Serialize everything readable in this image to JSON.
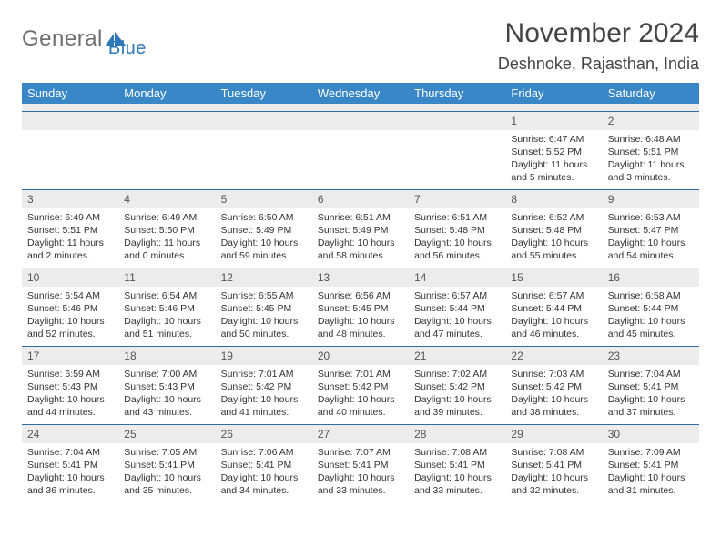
{
  "logo": {
    "text1": "General",
    "text2": "Blue"
  },
  "title": "November 2024",
  "location": "Deshnoke, Rajasthan, India",
  "colors": {
    "header_bg": "#3a87c8",
    "header_text": "#ffffff",
    "daynum_bg": "#ececec",
    "border": "#2e6ca3",
    "logo_gray": "#6e6e6e",
    "logo_blue": "#2e77b8"
  },
  "weekdays": [
    "Sunday",
    "Monday",
    "Tuesday",
    "Wednesday",
    "Thursday",
    "Friday",
    "Saturday"
  ],
  "weeks": [
    [
      null,
      null,
      null,
      null,
      null,
      {
        "n": "1",
        "sr": "Sunrise: 6:47 AM",
        "ss": "Sunset: 5:52 PM",
        "dl": "Daylight: 11 hours and 5 minutes."
      },
      {
        "n": "2",
        "sr": "Sunrise: 6:48 AM",
        "ss": "Sunset: 5:51 PM",
        "dl": "Daylight: 11 hours and 3 minutes."
      }
    ],
    [
      {
        "n": "3",
        "sr": "Sunrise: 6:49 AM",
        "ss": "Sunset: 5:51 PM",
        "dl": "Daylight: 11 hours and 2 minutes."
      },
      {
        "n": "4",
        "sr": "Sunrise: 6:49 AM",
        "ss": "Sunset: 5:50 PM",
        "dl": "Daylight: 11 hours and 0 minutes."
      },
      {
        "n": "5",
        "sr": "Sunrise: 6:50 AM",
        "ss": "Sunset: 5:49 PM",
        "dl": "Daylight: 10 hours and 59 minutes."
      },
      {
        "n": "6",
        "sr": "Sunrise: 6:51 AM",
        "ss": "Sunset: 5:49 PM",
        "dl": "Daylight: 10 hours and 58 minutes."
      },
      {
        "n": "7",
        "sr": "Sunrise: 6:51 AM",
        "ss": "Sunset: 5:48 PM",
        "dl": "Daylight: 10 hours and 56 minutes."
      },
      {
        "n": "8",
        "sr": "Sunrise: 6:52 AM",
        "ss": "Sunset: 5:48 PM",
        "dl": "Daylight: 10 hours and 55 minutes."
      },
      {
        "n": "9",
        "sr": "Sunrise: 6:53 AM",
        "ss": "Sunset: 5:47 PM",
        "dl": "Daylight: 10 hours and 54 minutes."
      }
    ],
    [
      {
        "n": "10",
        "sr": "Sunrise: 6:54 AM",
        "ss": "Sunset: 5:46 PM",
        "dl": "Daylight: 10 hours and 52 minutes."
      },
      {
        "n": "11",
        "sr": "Sunrise: 6:54 AM",
        "ss": "Sunset: 5:46 PM",
        "dl": "Daylight: 10 hours and 51 minutes."
      },
      {
        "n": "12",
        "sr": "Sunrise: 6:55 AM",
        "ss": "Sunset: 5:45 PM",
        "dl": "Daylight: 10 hours and 50 minutes."
      },
      {
        "n": "13",
        "sr": "Sunrise: 6:56 AM",
        "ss": "Sunset: 5:45 PM",
        "dl": "Daylight: 10 hours and 48 minutes."
      },
      {
        "n": "14",
        "sr": "Sunrise: 6:57 AM",
        "ss": "Sunset: 5:44 PM",
        "dl": "Daylight: 10 hours and 47 minutes."
      },
      {
        "n": "15",
        "sr": "Sunrise: 6:57 AM",
        "ss": "Sunset: 5:44 PM",
        "dl": "Daylight: 10 hours and 46 minutes."
      },
      {
        "n": "16",
        "sr": "Sunrise: 6:58 AM",
        "ss": "Sunset: 5:44 PM",
        "dl": "Daylight: 10 hours and 45 minutes."
      }
    ],
    [
      {
        "n": "17",
        "sr": "Sunrise: 6:59 AM",
        "ss": "Sunset: 5:43 PM",
        "dl": "Daylight: 10 hours and 44 minutes."
      },
      {
        "n": "18",
        "sr": "Sunrise: 7:00 AM",
        "ss": "Sunset: 5:43 PM",
        "dl": "Daylight: 10 hours and 43 minutes."
      },
      {
        "n": "19",
        "sr": "Sunrise: 7:01 AM",
        "ss": "Sunset: 5:42 PM",
        "dl": "Daylight: 10 hours and 41 minutes."
      },
      {
        "n": "20",
        "sr": "Sunrise: 7:01 AM",
        "ss": "Sunset: 5:42 PM",
        "dl": "Daylight: 10 hours and 40 minutes."
      },
      {
        "n": "21",
        "sr": "Sunrise: 7:02 AM",
        "ss": "Sunset: 5:42 PM",
        "dl": "Daylight: 10 hours and 39 minutes."
      },
      {
        "n": "22",
        "sr": "Sunrise: 7:03 AM",
        "ss": "Sunset: 5:42 PM",
        "dl": "Daylight: 10 hours and 38 minutes."
      },
      {
        "n": "23",
        "sr": "Sunrise: 7:04 AM",
        "ss": "Sunset: 5:41 PM",
        "dl": "Daylight: 10 hours and 37 minutes."
      }
    ],
    [
      {
        "n": "24",
        "sr": "Sunrise: 7:04 AM",
        "ss": "Sunset: 5:41 PM",
        "dl": "Daylight: 10 hours and 36 minutes."
      },
      {
        "n": "25",
        "sr": "Sunrise: 7:05 AM",
        "ss": "Sunset: 5:41 PM",
        "dl": "Daylight: 10 hours and 35 minutes."
      },
      {
        "n": "26",
        "sr": "Sunrise: 7:06 AM",
        "ss": "Sunset: 5:41 PM",
        "dl": "Daylight: 10 hours and 34 minutes."
      },
      {
        "n": "27",
        "sr": "Sunrise: 7:07 AM",
        "ss": "Sunset: 5:41 PM",
        "dl": "Daylight: 10 hours and 33 minutes."
      },
      {
        "n": "28",
        "sr": "Sunrise: 7:08 AM",
        "ss": "Sunset: 5:41 PM",
        "dl": "Daylight: 10 hours and 33 minutes."
      },
      {
        "n": "29",
        "sr": "Sunrise: 7:08 AM",
        "ss": "Sunset: 5:41 PM",
        "dl": "Daylight: 10 hours and 32 minutes."
      },
      {
        "n": "30",
        "sr": "Sunrise: 7:09 AM",
        "ss": "Sunset: 5:41 PM",
        "dl": "Daylight: 10 hours and 31 minutes."
      }
    ]
  ]
}
